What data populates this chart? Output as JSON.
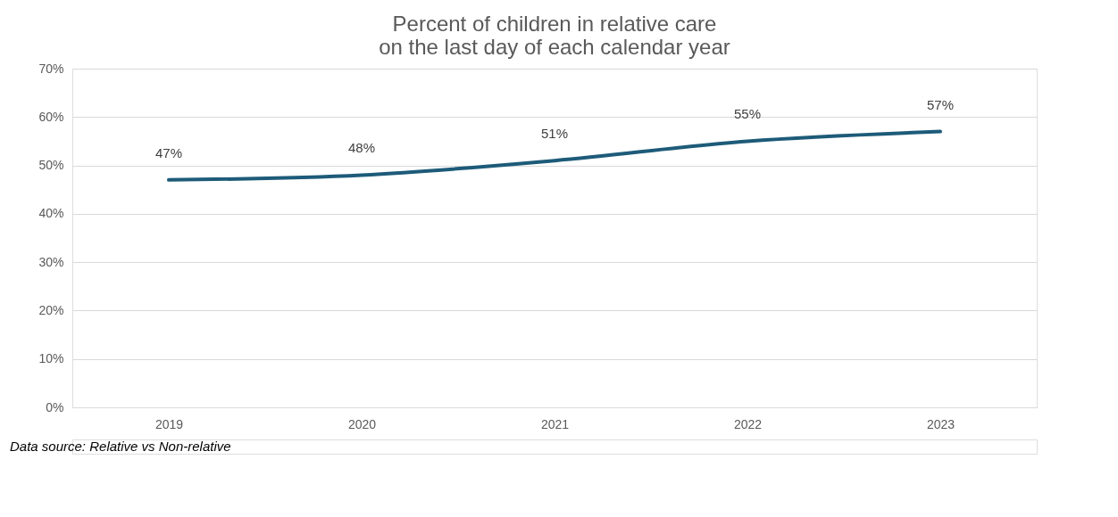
{
  "chart_data": {
    "type": "line",
    "title": "Percent of children in relative care\non the last day of each calendar year",
    "categories": [
      "2019",
      "2020",
      "2021",
      "2022",
      "2023"
    ],
    "series": [
      {
        "color": "#1d5b79",
        "values": [
          47,
          48,
          51,
          55,
          57
        ]
      }
    ],
    "ylim": [
      0,
      70
    ],
    "yticks": [
      {
        "value": 0,
        "label": "0%"
      },
      {
        "value": 10,
        "label": "10%"
      },
      {
        "value": 20,
        "label": "20%"
      },
      {
        "value": 30,
        "label": "30%"
      },
      {
        "value": 40,
        "label": "40%"
      },
      {
        "value": 50,
        "label": "50%"
      },
      {
        "value": 60,
        "label": "60%"
      },
      {
        "value": 70,
        "label": "70%"
      }
    ],
    "value_labels": [
      "47%",
      "48%",
      "51%",
      "55%",
      "57%"
    ],
    "grid": "y",
    "marker": "none",
    "line_style": "solid",
    "annotations": [
      "Data source: Relative vs Non-relative"
    ]
  }
}
